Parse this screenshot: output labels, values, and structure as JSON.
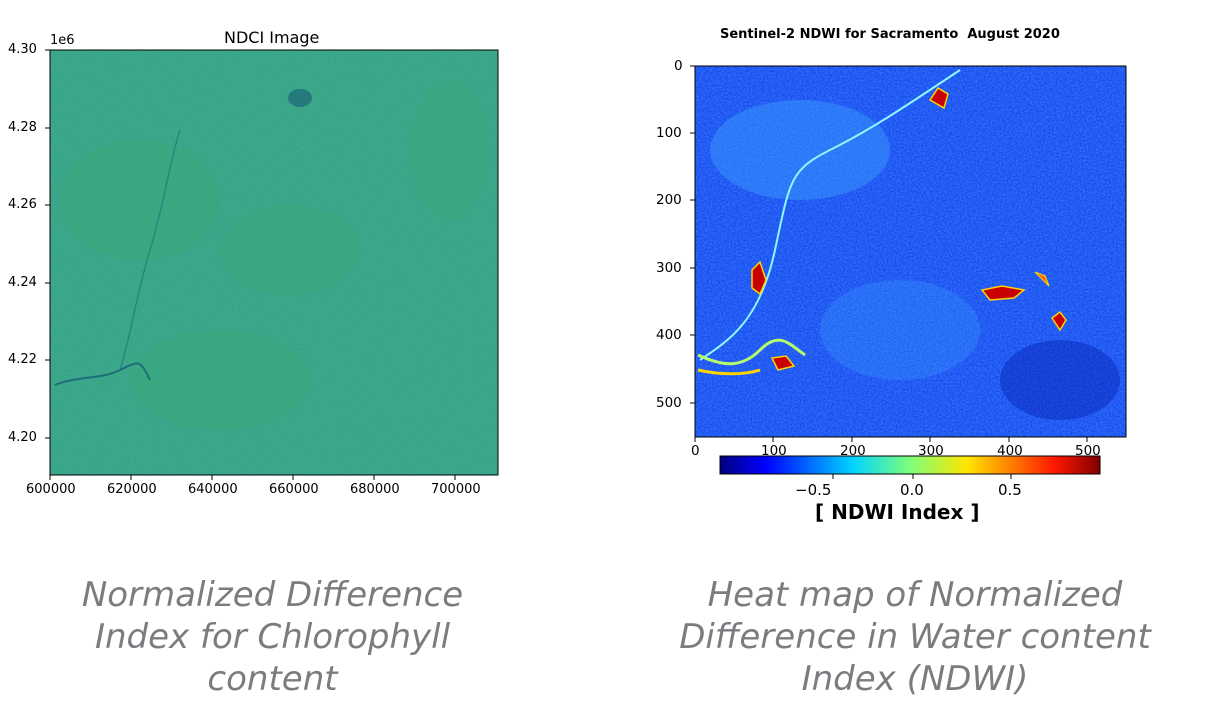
{
  "left_figure": {
    "title": "NDCI Image",
    "y_exponent": "1e6",
    "y_ticks": [
      "4.30",
      "4.28",
      "4.26",
      "4.24",
      "4.22",
      "4.20"
    ],
    "x_ticks": [
      "600000",
      "620000",
      "640000",
      "660000",
      "680000",
      "700000"
    ],
    "caption_lines": [
      "Normalized Difference",
      "Index for Chlorophyll",
      "content"
    ],
    "base_color": "#2a9a83"
  },
  "right_figure": {
    "title": "Sentinel-2 NDWI for Sacramento  August 2020",
    "y_ticks": [
      "0",
      "100",
      "200",
      "300",
      "400",
      "500"
    ],
    "x_ticks": [
      "0",
      "100",
      "200",
      "300",
      "400",
      "500"
    ],
    "colorbar_ticks": [
      "−0.5",
      "0.0",
      "0.5"
    ],
    "colorbar_label": "[ NDWI Index ]",
    "caption_lines": [
      "Heat map of Normalized",
      "Difference in Water content",
      "Index (NDWI)"
    ],
    "base_color": "#0a3cf0"
  }
}
